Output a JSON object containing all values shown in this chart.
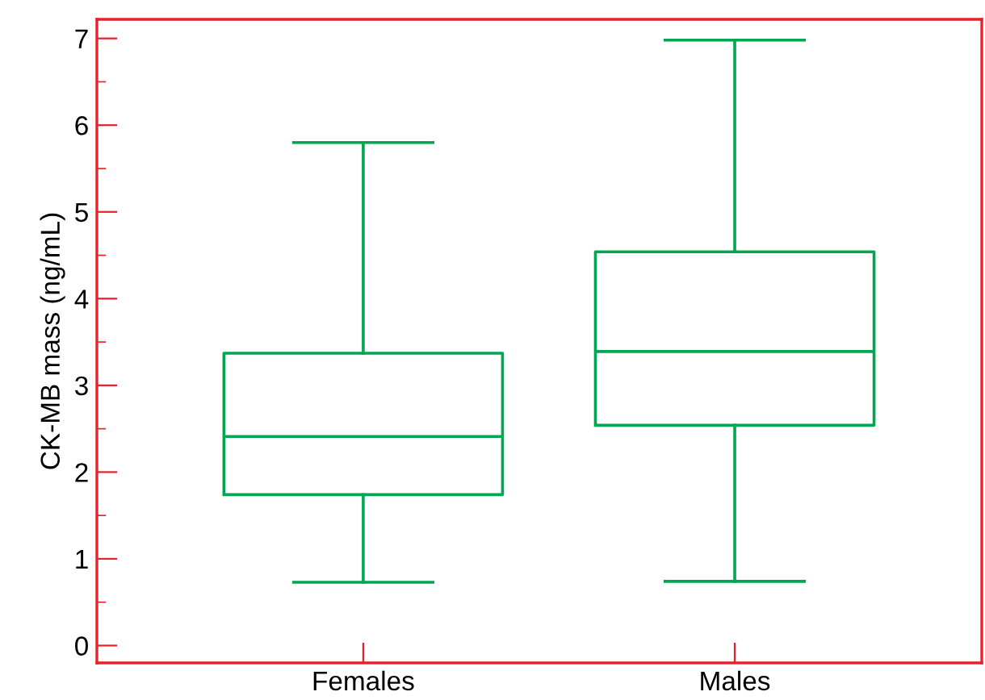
{
  "chart_data": {
    "type": "box",
    "ylabel": "CK-MB mass (ng/mL)",
    "categories": [
      "Females",
      "Males"
    ],
    "ylim": [
      -0.2,
      7.22
    ],
    "yticks": [
      0,
      {
        "value": 0.5,
        "label": null
      },
      1,
      {
        "value": 1.5,
        "label": null
      },
      2,
      {
        "value": 2.5,
        "label": null
      },
      3,
      {
        "value": 3.5,
        "label": null
      },
      4,
      {
        "value": 4.5,
        "label": null
      },
      5,
      {
        "value": 5.5,
        "label": null
      },
      6,
      {
        "value": 6.5,
        "label": null
      },
      7
    ],
    "series": [
      {
        "color": "#00a651",
        "boxes": [
          {
            "low": 0.73,
            "q1": 1.74,
            "median": 2.41,
            "q3": 3.37,
            "high": 5.8
          },
          {
            "low": 0.74,
            "q1": 2.54,
            "median": 3.39,
            "q3": 4.54,
            "high": 6.98
          }
        ]
      }
    ],
    "grid": false,
    "legend": false
  }
}
